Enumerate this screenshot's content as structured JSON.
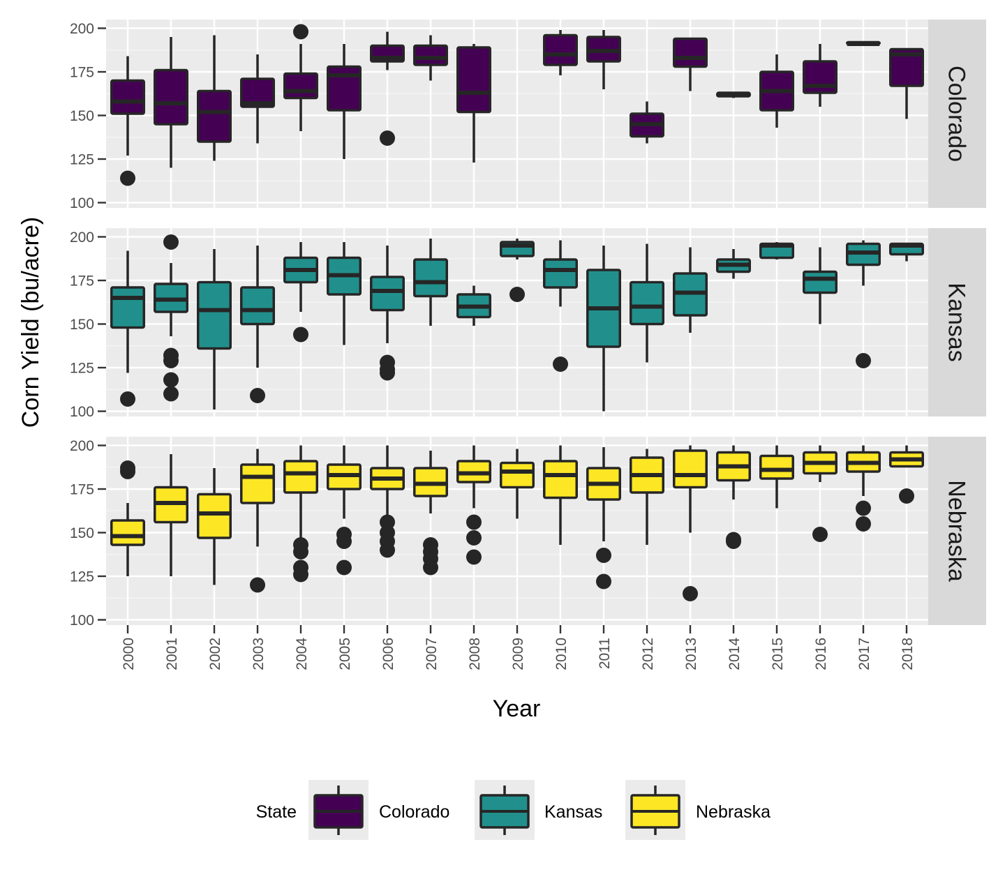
{
  "chart_data": {
    "type": "boxplot",
    "xlabel": "Year",
    "ylabel": "Corn Yield (bu/acre)",
    "ylim": [
      97,
      205
    ],
    "yticks": [
      100,
      125,
      150,
      175,
      200
    ],
    "categories": [
      "2000",
      "2001",
      "2002",
      "2003",
      "2004",
      "2005",
      "2006",
      "2007",
      "2008",
      "2009",
      "2010",
      "2011",
      "2012",
      "2013",
      "2014",
      "2015",
      "2016",
      "2017",
      "2018"
    ],
    "grid": true,
    "legend": {
      "title": "State",
      "position": "bottom",
      "entries": [
        "Colorado",
        "Kansas",
        "Nebraska"
      ]
    },
    "colors": {
      "Colorado": "#440154",
      "Kansas": "#21908c",
      "Nebraska": "#fde725",
      "outline": "#262626",
      "panel_bg": "#ebebeb",
      "strip_bg": "#d9d9d9"
    },
    "panels": [
      {
        "name": "Colorado",
        "boxes": [
          {
            "year": "2000",
            "lw": 127,
            "q1": 151,
            "med": 158,
            "q3": 170,
            "uw": 184,
            "out": [
              114
            ]
          },
          {
            "year": "2001",
            "lw": 120,
            "q1": 145,
            "med": 157,
            "q3": 176,
            "uw": 195,
            "out": []
          },
          {
            "year": "2002",
            "lw": 124,
            "q1": 135,
            "med": 152,
            "q3": 164,
            "uw": 196,
            "out": []
          },
          {
            "year": "2003",
            "lw": 134,
            "q1": 155,
            "med": 157,
            "q3": 171,
            "uw": 185,
            "out": []
          },
          {
            "year": "2004",
            "lw": 141,
            "q1": 160,
            "med": 164,
            "q3": 174,
            "uw": 191,
            "out": [
              198
            ]
          },
          {
            "year": "2005",
            "lw": 125,
            "q1": 153,
            "med": 173,
            "q3": 178,
            "uw": 191,
            "out": []
          },
          {
            "year": "2006",
            "lw": 176,
            "q1": 181,
            "med": 183,
            "q3": 190,
            "uw": 198,
            "out": [
              137
            ]
          },
          {
            "year": "2007",
            "lw": 170,
            "q1": 179,
            "med": 183,
            "q3": 190,
            "uw": 196,
            "out": []
          },
          {
            "year": "2008",
            "lw": 123,
            "q1": 152,
            "med": 163,
            "q3": 189,
            "uw": 191,
            "out": []
          },
          {
            "year": null
          },
          {
            "year": "2010",
            "lw": 173,
            "q1": 179,
            "med": 185,
            "q3": 196,
            "uw": 199,
            "out": []
          },
          {
            "year": "2011",
            "lw": 165,
            "q1": 181,
            "med": 187,
            "q3": 195,
            "uw": 199,
            "out": []
          },
          {
            "year": "2012",
            "lw": 134,
            "q1": 138,
            "med": 145,
            "q3": 151,
            "uw": 158,
            "out": []
          },
          {
            "year": "2013",
            "lw": 164,
            "q1": 178,
            "med": 183,
            "q3": 194,
            "uw": 194,
            "out": []
          },
          {
            "year": "2014",
            "lw": 160,
            "q1": 161,
            "med": 162,
            "q3": 163,
            "uw": 163,
            "out": []
          },
          {
            "year": "2015",
            "lw": 143,
            "q1": 153,
            "med": 164,
            "q3": 175,
            "uw": 185,
            "out": []
          },
          {
            "year": "2016",
            "lw": 155,
            "q1": 163,
            "med": 167,
            "q3": 181,
            "uw": 191,
            "out": []
          },
          {
            "year": "2017",
            "lw": 190,
            "q1": 191,
            "med": 191,
            "q3": 192,
            "uw": 192,
            "out": []
          },
          {
            "year": "2018",
            "lw": 148,
            "q1": 167,
            "med": 185,
            "q3": 188,
            "uw": 188,
            "out": []
          }
        ]
      },
      {
        "name": "Kansas",
        "boxes": [
          {
            "year": "2000",
            "lw": 122,
            "q1": 148,
            "med": 165,
            "q3": 171,
            "uw": 192,
            "out": [
              107
            ]
          },
          {
            "year": "2001",
            "lw": 143,
            "q1": 157,
            "med": 164,
            "q3": 173,
            "uw": 185,
            "out": [
              110,
              118,
              129,
              132,
              197
            ]
          },
          {
            "year": "2002",
            "lw": 101,
            "q1": 136,
            "med": 158,
            "q3": 174,
            "uw": 193,
            "out": []
          },
          {
            "year": "2003",
            "lw": 125,
            "q1": 150,
            "med": 158,
            "q3": 171,
            "uw": 195,
            "out": [
              109
            ]
          },
          {
            "year": "2004",
            "lw": 157,
            "q1": 174,
            "med": 181,
            "q3": 188,
            "uw": 197,
            "out": [
              144
            ]
          },
          {
            "year": "2005",
            "lw": 138,
            "q1": 167,
            "med": 178,
            "q3": 188,
            "uw": 197,
            "out": []
          },
          {
            "year": "2006",
            "lw": 139,
            "q1": 158,
            "med": 169,
            "q3": 177,
            "uw": 195,
            "out": [
              122,
              124,
              128
            ]
          },
          {
            "year": "2007",
            "lw": 149,
            "q1": 166,
            "med": 174,
            "q3": 187,
            "uw": 199,
            "out": []
          },
          {
            "year": "2008",
            "lw": 149,
            "q1": 154,
            "med": 160,
            "q3": 167,
            "uw": 172,
            "out": []
          },
          {
            "year": "2009",
            "lw": 187,
            "q1": 189,
            "med": 195,
            "q3": 197,
            "uw": 199,
            "out": [
              167
            ]
          },
          {
            "year": "2010",
            "lw": 160,
            "q1": 171,
            "med": 181,
            "q3": 187,
            "uw": 198,
            "out": [
              127
            ]
          },
          {
            "year": "2011",
            "lw": 100,
            "q1": 137,
            "med": 159,
            "q3": 181,
            "uw": 195,
            "out": []
          },
          {
            "year": "2012",
            "lw": 128,
            "q1": 150,
            "med": 160,
            "q3": 174,
            "uw": 196,
            "out": []
          },
          {
            "year": "2013",
            "lw": 145,
            "q1": 155,
            "med": 168,
            "q3": 179,
            "uw": 194,
            "out": []
          },
          {
            "year": "2014",
            "lw": 176,
            "q1": 180,
            "med": 184,
            "q3": 187,
            "uw": 193,
            "out": []
          },
          {
            "year": "2015",
            "lw": 187,
            "q1": 188,
            "med": 195,
            "q3": 196,
            "uw": 197,
            "out": []
          },
          {
            "year": "2016",
            "lw": 150,
            "q1": 168,
            "med": 176,
            "q3": 180,
            "uw": 194,
            "out": []
          },
          {
            "year": "2017",
            "lw": 172,
            "q1": 184,
            "med": 191,
            "q3": 196,
            "uw": 198,
            "out": [
              129
            ]
          },
          {
            "year": "2018",
            "lw": 186,
            "q1": 190,
            "med": 195,
            "q3": 196,
            "uw": 196,
            "out": []
          }
        ]
      },
      {
        "name": "Nebraska",
        "boxes": [
          {
            "year": "2000",
            "lw": 125,
            "q1": 143,
            "med": 148,
            "q3": 157,
            "uw": 167,
            "out": [
              185,
              187
            ]
          },
          {
            "year": "2001",
            "lw": 125,
            "q1": 156,
            "med": 167,
            "q3": 176,
            "uw": 195,
            "out": []
          },
          {
            "year": "2002",
            "lw": 120,
            "q1": 147,
            "med": 161,
            "q3": 172,
            "uw": 187,
            "out": []
          },
          {
            "year": "2003",
            "lw": 142,
            "q1": 167,
            "med": 182,
            "q3": 189,
            "uw": 198,
            "out": [
              120
            ]
          },
          {
            "year": "2004",
            "lw": 146,
            "q1": 173,
            "med": 184,
            "q3": 191,
            "uw": 200,
            "out": [
              126,
              130,
              139,
              143
            ]
          },
          {
            "year": "2005",
            "lw": 158,
            "q1": 175,
            "med": 183,
            "q3": 189,
            "uw": 200,
            "out": [
              130,
              145,
              149
            ]
          },
          {
            "year": "2006",
            "lw": 160,
            "q1": 175,
            "med": 181,
            "q3": 187,
            "uw": 200,
            "out": [
              140,
              145,
              150,
              156
            ]
          },
          {
            "year": "2007",
            "lw": 161,
            "q1": 171,
            "med": 178,
            "q3": 187,
            "uw": 197,
            "out": [
              130,
              135,
              139,
              143
            ]
          },
          {
            "year": "2008",
            "lw": 164,
            "q1": 179,
            "med": 184,
            "q3": 191,
            "uw": 200,
            "out": [
              136,
              147,
              156
            ]
          },
          {
            "year": "2009",
            "lw": 158,
            "q1": 176,
            "med": 185,
            "q3": 190,
            "uw": 198,
            "out": []
          },
          {
            "year": "2010",
            "lw": 143,
            "q1": 170,
            "med": 183,
            "q3": 191,
            "uw": 200,
            "out": []
          },
          {
            "year": "2011",
            "lw": 145,
            "q1": 169,
            "med": 178,
            "q3": 187,
            "uw": 199,
            "out": [
              122,
              137
            ]
          },
          {
            "year": "2012",
            "lw": 143,
            "q1": 173,
            "med": 183,
            "q3": 193,
            "uw": 198,
            "out": []
          },
          {
            "year": "2013",
            "lw": 150,
            "q1": 176,
            "med": 183,
            "q3": 197,
            "uw": 200,
            "out": [
              115
            ]
          },
          {
            "year": "2014",
            "lw": 169,
            "q1": 180,
            "med": 188,
            "q3": 196,
            "uw": 200,
            "out": [
              145,
              146
            ]
          },
          {
            "year": "2015",
            "lw": 164,
            "q1": 181,
            "med": 186,
            "q3": 194,
            "uw": 200,
            "out": []
          },
          {
            "year": "2016",
            "lw": 179,
            "q1": 184,
            "med": 190,
            "q3": 196,
            "uw": 200,
            "out": [
              149
            ]
          },
          {
            "year": "2017",
            "lw": 171,
            "q1": 185,
            "med": 190,
            "q3": 196,
            "uw": 200,
            "out": [
              155,
              164
            ]
          },
          {
            "year": "2018",
            "lw": 188,
            "q1": 188,
            "med": 192,
            "q3": 196,
            "uw": 200,
            "out": [
              171
            ]
          }
        ]
      }
    ]
  }
}
